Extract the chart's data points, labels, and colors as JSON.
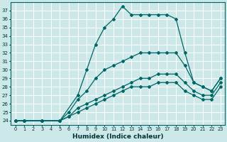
{
  "xlabel": "Humidex (Indice chaleur)",
  "background_color": "#cce8e8",
  "grid_color": "#ffffff",
  "line_color": "#006666",
  "xlim": [
    -0.5,
    23.5
  ],
  "ylim": [
    23.5,
    38
  ],
  "xticks": [
    0,
    1,
    2,
    3,
    4,
    5,
    6,
    7,
    8,
    9,
    10,
    11,
    12,
    13,
    14,
    15,
    16,
    17,
    18,
    19,
    20,
    21,
    22,
    23
  ],
  "yticks": [
    24,
    25,
    26,
    27,
    28,
    29,
    30,
    31,
    32,
    33,
    34,
    35,
    36,
    37
  ],
  "lines": [
    {
      "x": [
        0,
        1,
        3,
        5,
        7,
        8,
        9,
        10,
        11,
        12,
        13,
        14,
        15,
        16,
        17,
        18,
        19,
        20,
        21,
        22,
        23
      ],
      "y": [
        24,
        24,
        24,
        24,
        27,
        30,
        33,
        35,
        36,
        37.5,
        36.5,
        36.5,
        36.5,
        36.5,
        36.5,
        36,
        32,
        28.5,
        28,
        27.5,
        29
      ]
    },
    {
      "x": [
        0,
        1,
        3,
        5,
        6,
        7,
        8,
        9,
        10,
        11,
        12,
        13,
        14,
        15,
        16,
        17,
        18,
        19,
        20,
        21,
        22,
        23
      ],
      "y": [
        24,
        24,
        24,
        24,
        25,
        26.5,
        27.5,
        29,
        30,
        30.5,
        31,
        31.5,
        32,
        32,
        32,
        32,
        32,
        30.5,
        28.5,
        28,
        27.5,
        29
      ]
    },
    {
      "x": [
        0,
        1,
        3,
        5,
        6,
        7,
        8,
        9,
        10,
        11,
        12,
        13,
        14,
        15,
        16,
        17,
        18,
        19,
        20,
        21,
        22,
        23
      ],
      "y": [
        24,
        24,
        24,
        24,
        24.5,
        25.5,
        26,
        26.5,
        27,
        27.5,
        28,
        28.5,
        29,
        29,
        29.5,
        29.5,
        29.5,
        28.5,
        27.5,
        27,
        27,
        28.5
      ]
    },
    {
      "x": [
        0,
        1,
        3,
        5,
        6,
        7,
        8,
        9,
        10,
        11,
        12,
        13,
        14,
        15,
        16,
        17,
        18,
        19,
        20,
        21,
        22,
        23
      ],
      "y": [
        24,
        24,
        24,
        24,
        24.5,
        25,
        25.5,
        26,
        26.5,
        27,
        27.5,
        28,
        28,
        28,
        28.5,
        28.5,
        28.5,
        27.5,
        27,
        26.5,
        26.5,
        28
      ]
    }
  ]
}
